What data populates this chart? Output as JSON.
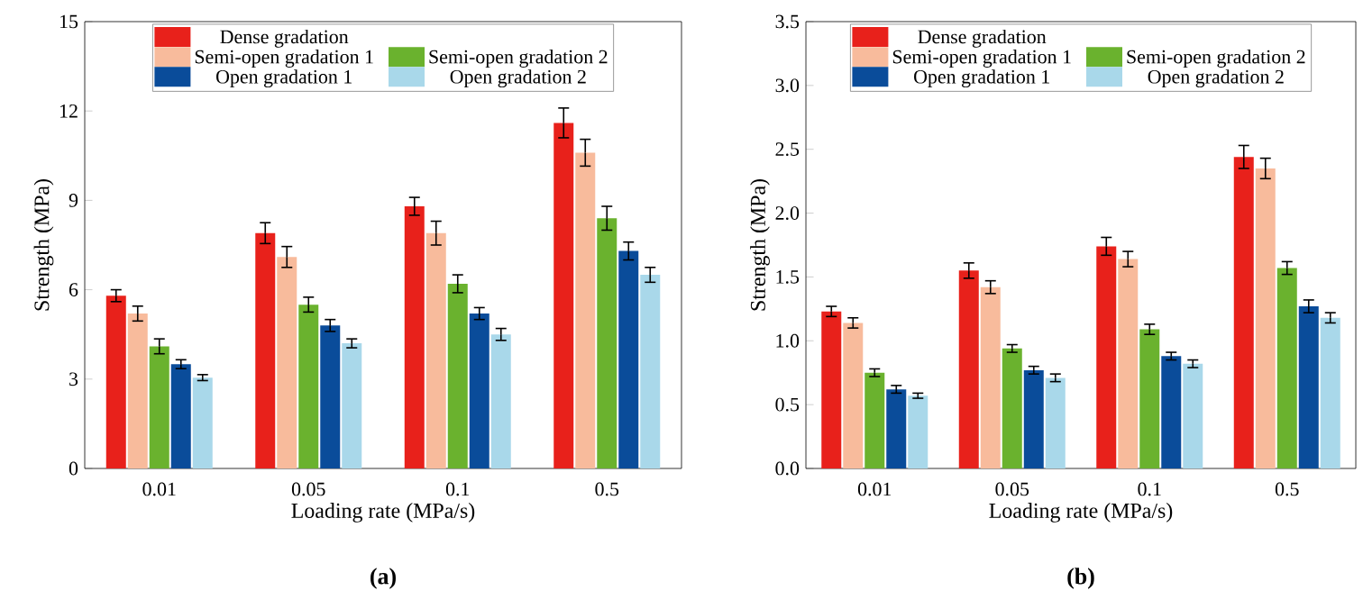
{
  "chart_data": [
    {
      "type": "bar",
      "title": "(a)",
      "xlabel": "Loading rate (MPa/s)",
      "ylabel": "Strength (MPa)",
      "categories": [
        "0.01",
        "0.05",
        "0.1",
        "0.5"
      ],
      "ylim": [
        0,
        15
      ],
      "yticks": [
        0,
        3,
        6,
        9,
        12,
        15
      ],
      "legend": "top",
      "series": [
        {
          "name": "Dense gradation",
          "color": "#e8211b",
          "values": [
            5.8,
            7.9,
            8.8,
            11.6
          ],
          "errors": [
            0.2,
            0.35,
            0.3,
            0.5
          ]
        },
        {
          "name": "Semi-open gradation 1",
          "color": "#f8bb9c",
          "values": [
            5.2,
            7.1,
            7.9,
            10.6
          ],
          "errors": [
            0.25,
            0.35,
            0.4,
            0.45
          ]
        },
        {
          "name": "Semi-open gradation 2",
          "color": "#6ab22e",
          "values": [
            4.1,
            5.5,
            6.2,
            8.4
          ],
          "errors": [
            0.25,
            0.25,
            0.3,
            0.4
          ]
        },
        {
          "name": "Open gradation 1",
          "color": "#0a4c9a",
          "values": [
            3.5,
            4.8,
            5.2,
            7.3
          ],
          "errors": [
            0.15,
            0.2,
            0.2,
            0.3
          ]
        },
        {
          "name": "Open gradation 2",
          "color": "#a9d8ea",
          "values": [
            3.05,
            4.2,
            4.5,
            6.5
          ],
          "errors": [
            0.1,
            0.15,
            0.2,
            0.25
          ]
        }
      ]
    },
    {
      "type": "bar",
      "title": "(b)",
      "xlabel": "Loading rate (MPa/s)",
      "ylabel": "Strength (MPa)",
      "categories": [
        "0.01",
        "0.05",
        "0.1",
        "0.5"
      ],
      "ylim": [
        0,
        3.5
      ],
      "yticks": [
        {
          "value": 0,
          "label": "0.0"
        },
        {
          "value": 0.5,
          "label": "0.5"
        },
        {
          "value": 1,
          "label": "1.0"
        },
        {
          "value": 1.5,
          "label": "1.5"
        },
        {
          "value": 2,
          "label": "2.0"
        },
        {
          "value": 2.5,
          "label": "2.5"
        },
        {
          "value": 3,
          "label": "3.0"
        },
        {
          "value": 3.5,
          "label": "3.5"
        }
      ],
      "legend": "top",
      "series": [
        {
          "name": "Dense gradation",
          "color": "#e8211b",
          "values": [
            1.23,
            1.55,
            1.74,
            2.44
          ],
          "errors": [
            0.04,
            0.06,
            0.07,
            0.09
          ]
        },
        {
          "name": "Semi-open gradation 1",
          "color": "#f8bb9c",
          "values": [
            1.14,
            1.42,
            1.64,
            2.35
          ],
          "errors": [
            0.04,
            0.05,
            0.06,
            0.08
          ]
        },
        {
          "name": "Semi-open gradation 2",
          "color": "#6ab22e",
          "values": [
            0.75,
            0.94,
            1.09,
            1.57
          ],
          "errors": [
            0.03,
            0.03,
            0.04,
            0.05
          ]
        },
        {
          "name": "Open gradation 1",
          "color": "#0a4c9a",
          "values": [
            0.62,
            0.77,
            0.88,
            1.27
          ],
          "errors": [
            0.03,
            0.03,
            0.03,
            0.05
          ]
        },
        {
          "name": "Open gradation 2",
          "color": "#a9d8ea",
          "values": [
            0.57,
            0.71,
            0.82,
            1.18
          ],
          "errors": [
            0.02,
            0.03,
            0.03,
            0.04
          ]
        }
      ]
    }
  ]
}
